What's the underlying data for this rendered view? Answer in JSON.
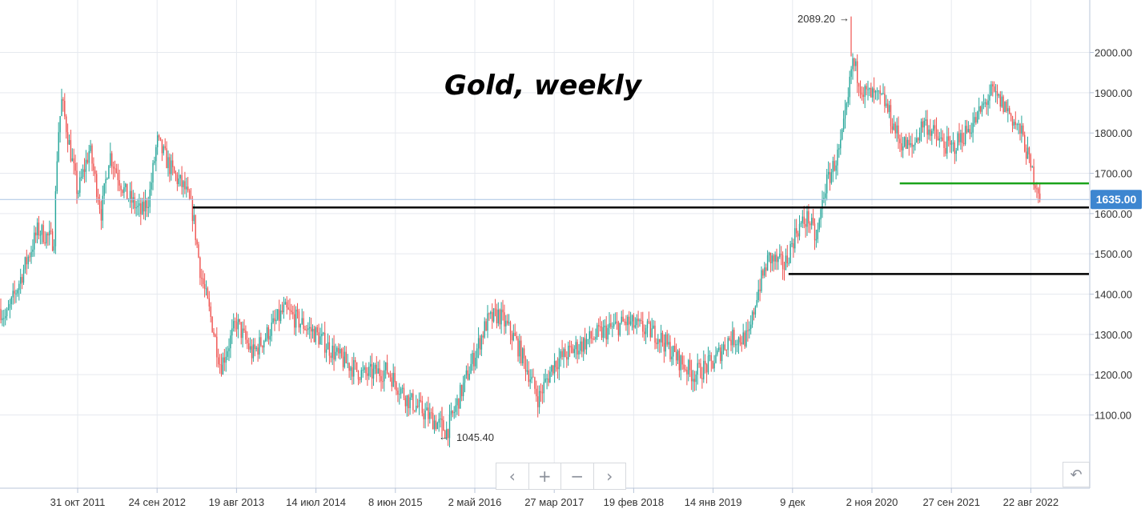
{
  "colors": {
    "up": "#26a69a",
    "down": "#ef5350",
    "grid": "#e6e9ef",
    "axis": "#b8c4d8",
    "current_price_bg": "#3d86d0",
    "support_line": "#000000",
    "resistance_line": "#1aa31a"
  },
  "icons": {
    "prev": "chevron-left-icon",
    "zoom_in": "plus-icon",
    "zoom_out": "minus-icon",
    "next": "chevron-right-icon",
    "reset": "undo-icon"
  },
  "nav": {
    "prev": "‹",
    "zoom_in": "+",
    "zoom_out": "−",
    "next": "›",
    "reset": "↶"
  },
  "chart_data": {
    "type": "candlestick",
    "title": "Gold, weekly",
    "ylim": [
      1000,
      2100
    ],
    "y_ticks": [
      "1100.00",
      "1200.00",
      "1300.00",
      "1400.00",
      "1500.00",
      "1600.00",
      "1700.00",
      "1800.00",
      "1900.00",
      "2000.00"
    ],
    "x_ticks": [
      "31 окт 2011",
      "24 сен 2012",
      "19 авг 2013",
      "14 июл 2014",
      "8 июн 2015",
      "2 май 2016",
      "27 мар 2017",
      "19 фев 2018",
      "14 янв 2019",
      "9 дек",
      "2 ноя 2020",
      "27 сен 2021",
      "22 авг 2022"
    ],
    "current_price": "1635.00",
    "high_label": "2089.20",
    "high_value": 2089.2,
    "low_label": "1045.40",
    "low_value": 1045.4,
    "levels": [
      {
        "name": "support-1615",
        "value": 1615,
        "from_tick": 1.45,
        "color": "#000000"
      },
      {
        "name": "support-1450",
        "value": 1450,
        "from_tick": 8.95,
        "color": "#000000"
      },
      {
        "name": "resistance-1675",
        "value": 1675,
        "from_tick": 10.35,
        "color": "#1aa31a"
      }
    ],
    "anchors": [
      [
        -1.1,
        1400
      ],
      [
        -0.9,
        1340
      ],
      [
        -0.5,
        1560
      ],
      [
        -0.3,
        1530
      ],
      [
        -0.25,
        1790
      ],
      [
        -0.2,
        1880
      ],
      [
        0.0,
        1650
      ],
      [
        0.15,
        1760
      ],
      [
        0.3,
        1600
      ],
      [
        0.4,
        1750
      ],
      [
        0.6,
        1650
      ],
      [
        0.8,
        1600
      ],
      [
        0.9,
        1640
      ],
      [
        1.0,
        1780
      ],
      [
        1.2,
        1700
      ],
      [
        1.35,
        1660
      ],
      [
        1.45,
        1600
      ],
      [
        1.55,
        1450
      ],
      [
        1.7,
        1320
      ],
      [
        1.8,
        1220
      ],
      [
        2.0,
        1330
      ],
      [
        2.2,
        1250
      ],
      [
        2.6,
        1360
      ],
      [
        3.0,
        1300
      ],
      [
        3.3,
        1240
      ],
      [
        3.6,
        1200
      ],
      [
        3.9,
        1210
      ],
      [
        4.15,
        1140
      ],
      [
        4.4,
        1100
      ],
      [
        4.65,
        1060
      ],
      [
        5.0,
        1250
      ],
      [
        5.15,
        1330
      ],
      [
        5.3,
        1350
      ],
      [
        5.5,
        1290
      ],
      [
        5.65,
        1220
      ],
      [
        5.8,
        1140
      ],
      [
        6.0,
        1230
      ],
      [
        6.3,
        1270
      ],
      [
        6.55,
        1300
      ],
      [
        6.9,
        1330
      ],
      [
        7.3,
        1300
      ],
      [
        7.55,
        1240
      ],
      [
        7.75,
        1200
      ],
      [
        8.0,
        1230
      ],
      [
        8.2,
        1290
      ],
      [
        8.45,
        1290
      ],
      [
        8.55,
        1400
      ],
      [
        8.7,
        1490
      ],
      [
        8.9,
        1470
      ],
      [
        9.05,
        1560
      ],
      [
        9.2,
        1590
      ],
      [
        9.3,
        1530
      ],
      [
        9.4,
        1660
      ],
      [
        9.6,
        1760
      ],
      [
        9.7,
        1880
      ],
      [
        9.75,
        1980
      ],
      [
        9.9,
        1900
      ],
      [
        10.15,
        1880
      ],
      [
        10.35,
        1780
      ],
      [
        10.5,
        1760
      ],
      [
        10.65,
        1830
      ],
      [
        10.85,
        1780
      ],
      [
        11.0,
        1760
      ],
      [
        11.3,
        1830
      ],
      [
        11.5,
        1900
      ],
      [
        11.7,
        1860
      ],
      [
        11.9,
        1790
      ],
      [
        12.0,
        1710
      ],
      [
        12.1,
        1660
      ],
      [
        12.12,
        1640
      ]
    ]
  }
}
